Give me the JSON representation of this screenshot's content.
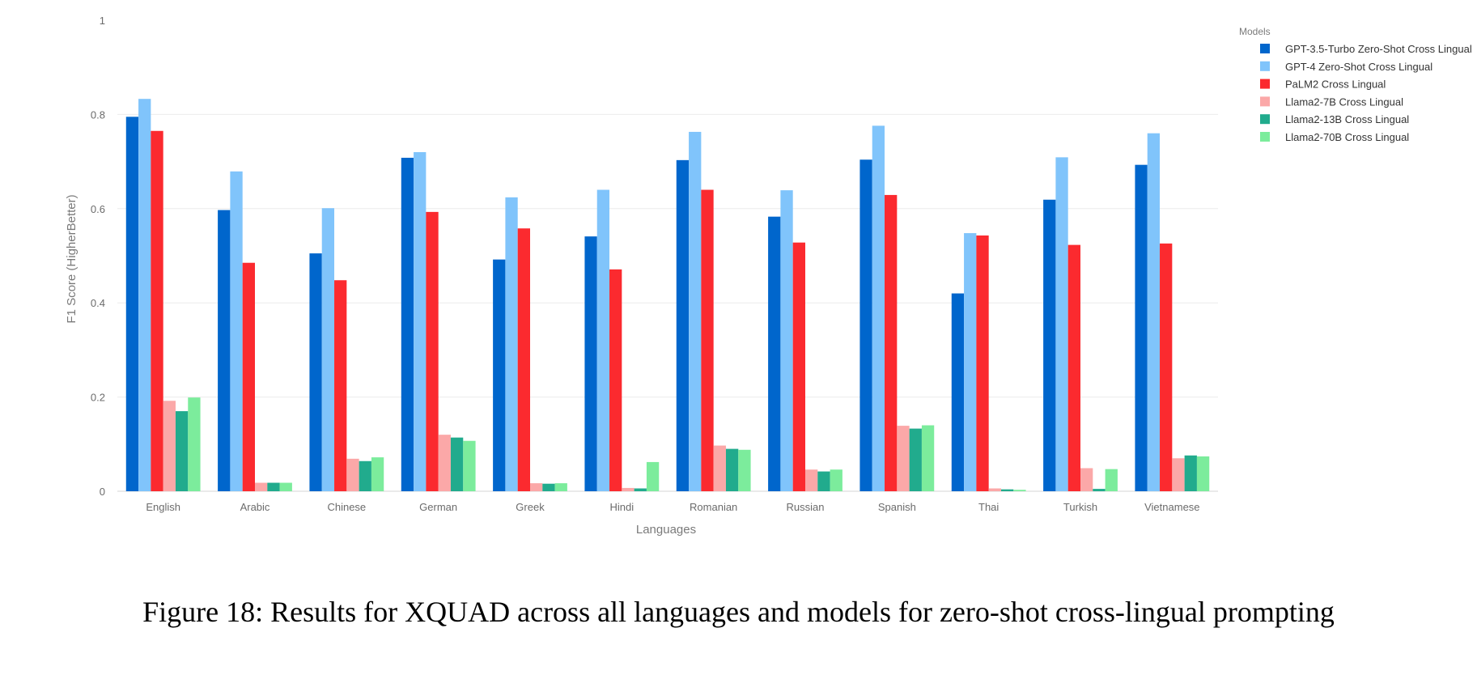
{
  "chart_data": {
    "type": "bar",
    "title": "",
    "xlabel": "Languages",
    "ylabel": "F1 Score (HigherBetter)",
    "ylim": [
      0,
      1
    ],
    "yticks": [
      0,
      0.2,
      0.4,
      0.6,
      0.8,
      1
    ],
    "ytick_labels": [
      "0",
      "0.2",
      "0.4",
      "0.6",
      "0.8",
      "1"
    ],
    "grid": true,
    "legend_title": "Models",
    "legend_position": "top-right",
    "categories": [
      "English",
      "Arabic",
      "Chinese",
      "German",
      "Greek",
      "Hindi",
      "Romanian",
      "Russian",
      "Spanish",
      "Thai",
      "Turkish",
      "Vietnamese"
    ],
    "series": [
      {
        "name": "GPT-3.5-Turbo Zero-Shot Cross Lingual",
        "color": "#0066cc",
        "values": [
          0.795,
          0.597,
          0.505,
          0.708,
          0.492,
          0.541,
          0.703,
          0.583,
          0.704,
          0.42,
          0.619,
          0.693
        ]
      },
      {
        "name": "GPT-4 Zero-Shot Cross Lingual",
        "color": "#80c4fb",
        "values": [
          0.833,
          0.679,
          0.601,
          0.72,
          0.624,
          0.64,
          0.763,
          0.639,
          0.776,
          0.548,
          0.709,
          0.76
        ]
      },
      {
        "name": "PaLM2 Cross Lingual",
        "color": "#fb2a2f",
        "values": [
          0.765,
          0.485,
          0.448,
          0.593,
          0.558,
          0.471,
          0.64,
          0.528,
          0.629,
          0.543,
          0.523,
          0.526
        ]
      },
      {
        "name": "Llama2-7B Cross Lingual",
        "color": "#fba8a8",
        "values": [
          0.192,
          0.018,
          0.069,
          0.12,
          0.017,
          0.007,
          0.097,
          0.046,
          0.139,
          0.006,
          0.049,
          0.07
        ]
      },
      {
        "name": "Llama2-13B Cross Lingual",
        "color": "#21ab8d",
        "values": [
          0.17,
          0.018,
          0.064,
          0.114,
          0.016,
          0.006,
          0.09,
          0.042,
          0.133,
          0.004,
          0.005,
          0.076
        ]
      },
      {
        "name": "Llama2-70B Cross Lingual",
        "color": "#7cec9c",
        "values": [
          0.199,
          0.018,
          0.072,
          0.107,
          0.017,
          0.062,
          0.088,
          0.046,
          0.14,
          0.003,
          0.047,
          0.074
        ]
      }
    ]
  },
  "caption": "Figure 18: Results for XQUAD across all languages and models for zero-shot cross-lingual prompting"
}
